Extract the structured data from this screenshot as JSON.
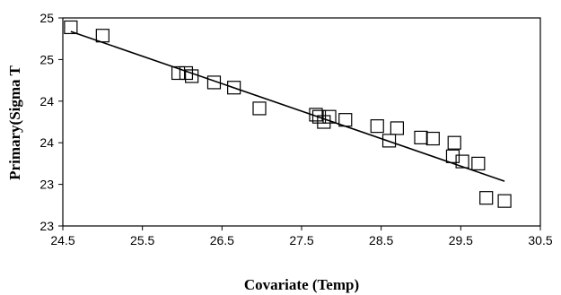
{
  "chart_data": {
    "type": "scatter",
    "title": "",
    "xlabel": "Covariate (Temp)",
    "ylabel": "Primary(Sigma T",
    "xlim": [
      24.5,
      30.5
    ],
    "ylim": [
      23,
      25
    ],
    "x_ticks": [
      "24.5",
      "25.5",
      "26.5",
      "27.5",
      "28.5",
      "29.5",
      "30.5"
    ],
    "y_ticks": [
      "23",
      "23",
      "24",
      "24",
      "25",
      "25"
    ],
    "legend": "none",
    "grid": false,
    "marker": "open-square",
    "series": [
      {
        "points": [
          {
            "x": 24.6,
            "y": 24.91
          },
          {
            "x": 25.0,
            "y": 24.83
          },
          {
            "x": 25.95,
            "y": 24.47
          },
          {
            "x": 26.05,
            "y": 24.47
          },
          {
            "x": 26.12,
            "y": 24.44
          },
          {
            "x": 26.4,
            "y": 24.38
          },
          {
            "x": 26.65,
            "y": 24.33
          },
          {
            "x": 26.97,
            "y": 24.13
          },
          {
            "x": 27.68,
            "y": 24.07
          },
          {
            "x": 27.72,
            "y": 24.05
          },
          {
            "x": 27.78,
            "y": 24.0
          },
          {
            "x": 27.85,
            "y": 24.05
          },
          {
            "x": 28.05,
            "y": 24.02
          },
          {
            "x": 28.45,
            "y": 23.96
          },
          {
            "x": 28.6,
            "y": 23.82
          },
          {
            "x": 28.7,
            "y": 23.94
          },
          {
            "x": 29.0,
            "y": 23.85
          },
          {
            "x": 29.15,
            "y": 23.84
          },
          {
            "x": 29.4,
            "y": 23.67
          },
          {
            "x": 29.42,
            "y": 23.8
          },
          {
            "x": 29.52,
            "y": 23.62
          },
          {
            "x": 29.72,
            "y": 23.6
          },
          {
            "x": 29.82,
            "y": 23.27
          },
          {
            "x": 30.05,
            "y": 23.24
          }
        ]
      }
    ],
    "trendline": {
      "x1": 24.6,
      "y1": 24.87,
      "x2": 30.05,
      "y2": 23.43
    }
  }
}
